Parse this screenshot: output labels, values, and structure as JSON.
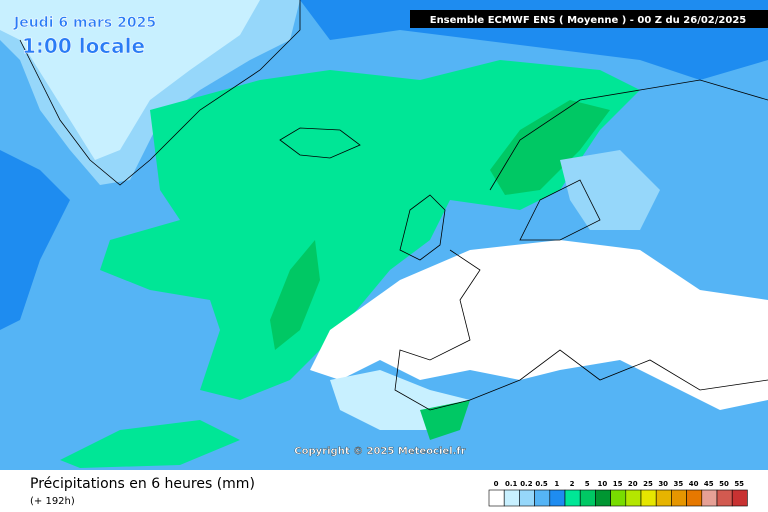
{
  "header": {
    "date": "Jeudi 6 mars 2025",
    "time": "1:00 locale",
    "model": "Ensemble ECMWF ENS  ( Moyenne )  -  00 Z du 26/02/2025"
  },
  "copyright": "Copyright © 2025 Meteociel.fr",
  "footer": {
    "title": "Précipitations en 6 heures (mm)",
    "lead": "(+ 192h)"
  },
  "legend": {
    "labels": [
      "0",
      "0.1",
      "0.2",
      "0.5",
      "1",
      "2",
      "5",
      "10",
      "15",
      "20",
      "25",
      "30",
      "35",
      "40",
      "45",
      "50",
      "55"
    ],
    "colors": [
      "#ffffff",
      "#c8f0ff",
      "#96d7fa",
      "#55b4f5",
      "#1e8cf0",
      "#00e696",
      "#00c864",
      "#009632",
      "#78dc00",
      "#b4e600",
      "#e6e600",
      "#e6b400",
      "#e69600",
      "#e67800",
      "#e6a096",
      "#d25a50",
      "#c83232"
    ]
  }
}
